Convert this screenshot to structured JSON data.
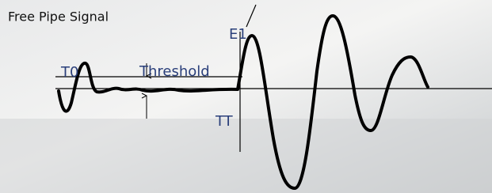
{
  "header": {
    "title": "Free Pipe Signal"
  },
  "labels": {
    "t0": "T0",
    "threshold": "Threshold",
    "e1": "E1",
    "tt": "TT"
  }
}
